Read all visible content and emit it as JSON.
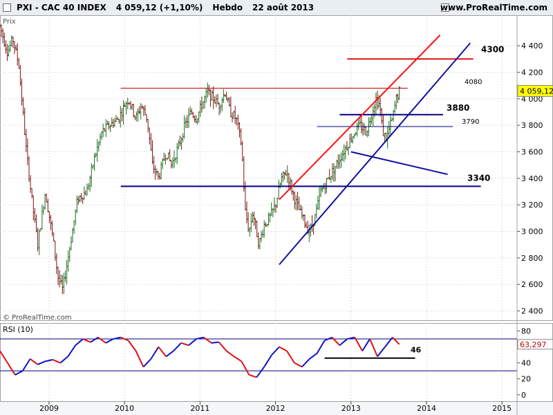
{
  "header": {
    "symbol": "PXI - CAC 40 INDEX",
    "price": "4 059,12 (+1,10%)",
    "period": "Hebdo",
    "date": "22 août 2013",
    "site": "www.ProRealTime.com"
  },
  "price_panel": {
    "label": "Prix",
    "watermark": "© ProRealTime.com",
    "last_value": "4 059,12"
  },
  "rsi_panel": {
    "label": "RSI (10)",
    "last_value": "63,297"
  },
  "chart_data": [
    {
      "type": "ohlc",
      "title": "PXI - CAC 40 INDEX",
      "ylim": [
        2330,
        4630
      ],
      "xlim": [
        2008.35,
        2015.2
      ],
      "y_ticks": [
        {
          "v": 2400,
          "t": "2 400"
        },
        {
          "v": 2600,
          "t": "2 600"
        },
        {
          "v": 2800,
          "t": "2 800"
        },
        {
          "v": 3000,
          "t": "3 000"
        },
        {
          "v": 3200,
          "t": "3 200"
        },
        {
          "v": 3400,
          "t": "3 400"
        },
        {
          "v": 3600,
          "t": "3 600"
        },
        {
          "v": 3800,
          "t": "3 800"
        },
        {
          "v": 4000,
          "t": "4 000"
        },
        {
          "v": 4200,
          "t": "4 200"
        },
        {
          "v": 4400,
          "t": "4 400"
        }
      ],
      "x_ticks": [
        {
          "v": 2009,
          "t": "2009"
        },
        {
          "v": 2010,
          "t": "2010"
        },
        {
          "v": 2011,
          "t": "2011"
        },
        {
          "v": 2012,
          "t": "2012"
        },
        {
          "v": 2013,
          "t": "2013"
        },
        {
          "v": 2014,
          "t": "2014"
        },
        {
          "v": 2015,
          "t": "2015"
        }
      ],
      "path": [
        [
          2008.35,
          4550
        ],
        [
          2008.45,
          4350
        ],
        [
          2008.52,
          4450
        ],
        [
          2008.6,
          4250
        ],
        [
          2008.7,
          3600
        ],
        [
          2008.78,
          3200
        ],
        [
          2008.85,
          2900
        ],
        [
          2008.95,
          3300
        ],
        [
          2009.05,
          2950
        ],
        [
          2009.12,
          2650
        ],
        [
          2009.18,
          2560
        ],
        [
          2009.28,
          2900
        ],
        [
          2009.38,
          3250
        ],
        [
          2009.5,
          3300
        ],
        [
          2009.6,
          3550
        ],
        [
          2009.7,
          3750
        ],
        [
          2009.8,
          3800
        ],
        [
          2009.92,
          3850
        ],
        [
          2010.0,
          3950
        ],
        [
          2010.05,
          4000
        ],
        [
          2010.15,
          3850
        ],
        [
          2010.22,
          3950
        ],
        [
          2010.3,
          3850
        ],
        [
          2010.37,
          3500
        ],
        [
          2010.45,
          3400
        ],
        [
          2010.55,
          3600
        ],
        [
          2010.62,
          3500
        ],
        [
          2010.72,
          3650
        ],
        [
          2010.8,
          3800
        ],
        [
          2010.88,
          3900
        ],
        [
          2010.95,
          3850
        ],
        [
          2011.02,
          3950
        ],
        [
          2011.1,
          4050
        ],
        [
          2011.18,
          4000
        ],
        [
          2011.25,
          3950
        ],
        [
          2011.33,
          4050
        ],
        [
          2011.4,
          3900
        ],
        [
          2011.48,
          3850
        ],
        [
          2011.55,
          3650
        ],
        [
          2011.6,
          3150
        ],
        [
          2011.65,
          3000
        ],
        [
          2011.7,
          3150
        ],
        [
          2011.78,
          2900
        ],
        [
          2011.85,
          3050
        ],
        [
          2011.92,
          3100
        ],
        [
          2012.0,
          3200
        ],
        [
          2012.08,
          3400
        ],
        [
          2012.15,
          3450
        ],
        [
          2012.25,
          3250
        ],
        [
          2012.32,
          3150
        ],
        [
          2012.4,
          3050
        ],
        [
          2012.45,
          3000
        ],
        [
          2012.52,
          3100
        ],
        [
          2012.6,
          3300
        ],
        [
          2012.7,
          3400
        ],
        [
          2012.8,
          3500
        ],
        [
          2012.9,
          3600
        ],
        [
          2013.0,
          3700
        ],
        [
          2013.05,
          3750
        ],
        [
          2013.12,
          3800
        ],
        [
          2013.2,
          3750
        ],
        [
          2013.28,
          3900
        ],
        [
          2013.33,
          4000
        ],
        [
          2013.38,
          3950
        ],
        [
          2013.42,
          3750
        ],
        [
          2013.47,
          3700
        ],
        [
          2013.52,
          3800
        ],
        [
          2013.55,
          3850
        ],
        [
          2013.6,
          4000
        ],
        [
          2013.64,
          4059.12
        ]
      ],
      "levels": [
        {
          "v": 4300,
          "t": "4300",
          "color": "#e01010"
        },
        {
          "v": 4080,
          "t": "4080",
          "color": "#c00000"
        },
        {
          "v": 3880,
          "t": "3880",
          "color": "#00007f"
        },
        {
          "v": 3790,
          "t": "3790",
          "color": "#00007f"
        },
        {
          "v": 3340,
          "t": "3340",
          "color": "#00007f"
        }
      ]
    },
    {
      "type": "line",
      "title": "RSI (10)",
      "ylim": [
        -8,
        90
      ],
      "y_ticks": [
        {
          "v": 0,
          "t": "0"
        },
        {
          "v": 20,
          "t": "20"
        },
        {
          "v": 40,
          "t": "40"
        },
        {
          "v": 60,
          "t": "60"
        },
        {
          "v": 80,
          "t": "80"
        }
      ],
      "overbought": 70,
      "oversold": 30,
      "level": {
        "v": 46,
        "t": "46"
      },
      "x": [
        2008.35,
        2008.45,
        2008.55,
        2008.65,
        2008.75,
        2008.85,
        2008.95,
        2009.05,
        2009.15,
        2009.25,
        2009.35,
        2009.45,
        2009.55,
        2009.65,
        2009.75,
        2009.85,
        2009.95,
        2010.05,
        2010.15,
        2010.25,
        2010.35,
        2010.45,
        2010.55,
        2010.65,
        2010.75,
        2010.85,
        2010.95,
        2011.05,
        2011.15,
        2011.25,
        2011.35,
        2011.45,
        2011.55,
        2011.65,
        2011.75,
        2011.85,
        2011.95,
        2012.05,
        2012.15,
        2012.25,
        2012.35,
        2012.45,
        2012.55,
        2012.65,
        2012.75,
        2012.85,
        2012.95,
        2013.05,
        2013.15,
        2013.25,
        2013.35,
        2013.45,
        2013.55,
        2013.64
      ],
      "values": [
        55,
        40,
        25,
        30,
        45,
        38,
        42,
        44,
        40,
        48,
        62,
        70,
        66,
        72,
        65,
        70,
        72,
        68,
        55,
        35,
        45,
        60,
        48,
        55,
        65,
        62,
        70,
        72,
        65,
        66,
        55,
        48,
        42,
        25,
        22,
        35,
        50,
        60,
        55,
        40,
        35,
        45,
        52,
        68,
        72,
        62,
        70,
        72,
        55,
        70,
        48,
        60,
        72,
        63.297
      ]
    }
  ]
}
